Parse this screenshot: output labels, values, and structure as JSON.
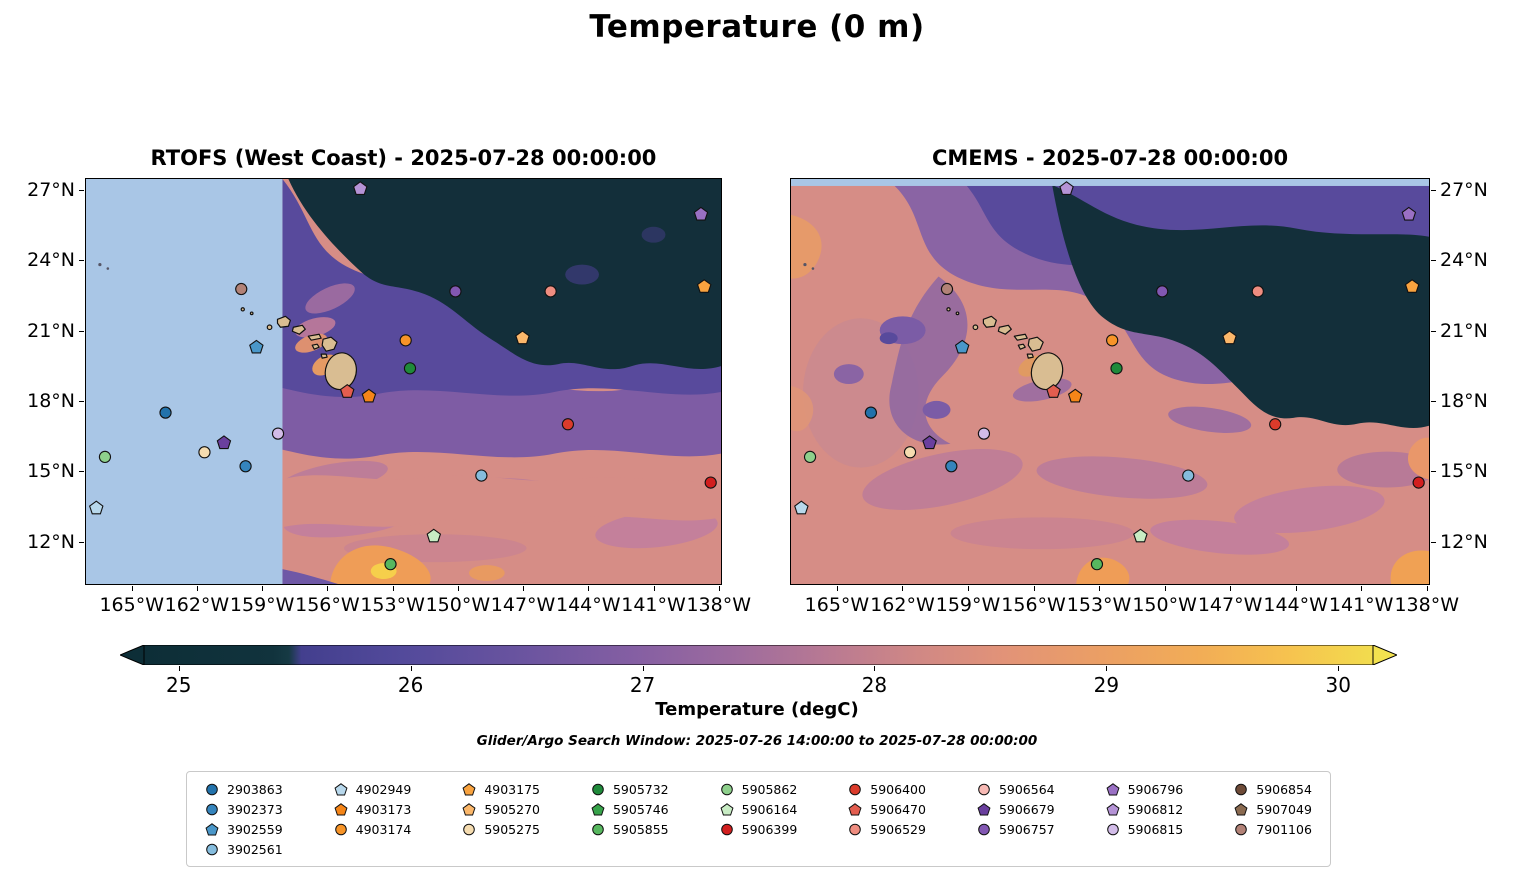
{
  "figure": {
    "title": "Temperature (0 m)",
    "search_window": "Glider/Argo Search Window: 2025-07-26 14:00:00 to 2025-07-28 00:00:00"
  },
  "panels": {
    "left": {
      "title": "RTOFS (West Coast) - 2025-07-28 00:00:00"
    },
    "right": {
      "title": "CMEMS - 2025-07-28 00:00:00"
    }
  },
  "axes": {
    "lon_ticks": [
      {
        "label": "165°W",
        "value": -165
      },
      {
        "label": "162°W",
        "value": -162
      },
      {
        "label": "159°W",
        "value": -159
      },
      {
        "label": "156°W",
        "value": -156
      },
      {
        "label": "153°W",
        "value": -153
      },
      {
        "label": "150°W",
        "value": -150
      },
      {
        "label": "147°W",
        "value": -147
      },
      {
        "label": "144°W",
        "value": -144
      },
      {
        "label": "141°W",
        "value": -141
      },
      {
        "label": "138°W",
        "value": -138
      }
    ],
    "lat_ticks": [
      {
        "label": "27°N",
        "value": 27
      },
      {
        "label": "24°N",
        "value": 24
      },
      {
        "label": "21°N",
        "value": 21
      },
      {
        "label": "18°N",
        "value": 18
      },
      {
        "label": "15°N",
        "value": 15
      },
      {
        "label": "12°N",
        "value": 12
      }
    ]
  },
  "colorbar": {
    "label": "Temperature (degC)",
    "ticks": [
      {
        "label": "25",
        "value": 25
      },
      {
        "label": "26",
        "value": 26
      },
      {
        "label": "27",
        "value": 27
      },
      {
        "label": "28",
        "value": 28
      },
      {
        "label": "29",
        "value": 29
      },
      {
        "label": "30",
        "value": 30
      }
    ],
    "range": [
      24.85,
      30.15
    ],
    "extend": "both",
    "under_color": "#0d2e37",
    "over_color": "#f3e24f",
    "stops": [
      [
        0,
        "#0d2e37"
      ],
      [
        0.105,
        "#11333d"
      ],
      [
        0.118,
        "#163a44"
      ],
      [
        0.128,
        "#433f8e"
      ],
      [
        0.21,
        "#534a9b"
      ],
      [
        0.3,
        "#68539f"
      ],
      [
        0.4,
        "#855fa3"
      ],
      [
        0.48,
        "#9d6b9e"
      ],
      [
        0.555,
        "#b87993"
      ],
      [
        0.63,
        "#d08885"
      ],
      [
        0.7,
        "#e29378"
      ],
      [
        0.78,
        "#eb9f64"
      ],
      [
        0.86,
        "#f2ad56"
      ],
      [
        0.93,
        "#f6c24f"
      ],
      [
        1,
        "#f2dc4e"
      ]
    ]
  },
  "chart_data": {
    "type": "heatmap",
    "title": "Temperature (0 m)",
    "variable": "Temperature (degC)",
    "panels": [
      {
        "name": "RTOFS (West Coast)",
        "timestamp": "2025-07-28 00:00:00",
        "note": "Region west of ~158.5°W outside model domain, masked light blue"
      },
      {
        "name": "CMEMS",
        "timestamp": "2025-07-28 00:00:00",
        "note": "Thin masked light-blue strip along top edge near 27°N"
      }
    ],
    "lon_range": [
      -167.15,
      -137.85
    ],
    "lat_range": [
      10.15,
      27.52
    ],
    "mask_color": "#a9c6e6",
    "land_color": "#d9bd92",
    "field_summary": "Cold pool ~24.5-25.5 degC fills the NE quadrant (dark teal); 26-27 degC purple band surrounds Hawaii; 27.5-28.5 degC dusty salmon covers the southern/western half; warmest 29-30+ degC orange/yellow patches along the southern edge near 153°W and the SE corner",
    "floats": [
      {
        "id": "2903863",
        "marker": "circle",
        "color": "#2272ab",
        "lon": -163.5,
        "lat": 17.5
      },
      {
        "id": "3902373",
        "marker": "circle",
        "color": "#3584bc",
        "lon": -159.8,
        "lat": 15.2
      },
      {
        "id": "3902559",
        "marker": "pentagon",
        "color": "#4a97c9",
        "lon": -159.3,
        "lat": 20.3
      },
      {
        "id": "3902561",
        "marker": "circle",
        "color": "#85bcdd",
        "lon": -148.9,
        "lat": 14.8
      },
      {
        "id": "4902949",
        "marker": "pentagon",
        "color": "#b8d8ec",
        "lon": -166.7,
        "lat": 13.4
      },
      {
        "id": "4903173",
        "marker": "pentagon",
        "color": "#f58518",
        "lon": -154.1,
        "lat": 18.2
      },
      {
        "id": "4903174",
        "marker": "circle",
        "color": "#f79428",
        "lon": -152.4,
        "lat": 20.6
      },
      {
        "id": "4903175",
        "marker": "pentagon",
        "color": "#f9a33f",
        "lon": -138.6,
        "lat": 22.9
      },
      {
        "id": "5905270",
        "marker": "pentagon",
        "color": "#fbb76a",
        "lon": -147.0,
        "lat": 20.7
      },
      {
        "id": "5905275",
        "marker": "circle",
        "color": "#f5dcb0",
        "lon": -161.7,
        "lat": 15.8
      },
      {
        "id": "5905732",
        "marker": "circle",
        "color": "#1f8a3a",
        "lon": -152.2,
        "lat": 19.4
      },
      {
        "id": "5905746",
        "marker": "pentagon",
        "color": "#37a34a",
        "lon": null,
        "lat": null
      },
      {
        "id": "5905855",
        "marker": "circle",
        "color": "#57b75f",
        "lon": -153.1,
        "lat": 11.0
      },
      {
        "id": "5905862",
        "marker": "circle",
        "color": "#8ed08c",
        "lon": -166.3,
        "lat": 15.6
      },
      {
        "id": "5906164",
        "marker": "pentagon",
        "color": "#c8ecc4",
        "lon": -151.1,
        "lat": 12.2
      },
      {
        "id": "5906399",
        "marker": "circle",
        "color": "#d21f1f",
        "lon": -138.3,
        "lat": 14.5
      },
      {
        "id": "5906400",
        "marker": "circle",
        "color": "#db3b2b",
        "lon": -144.9,
        "lat": 17.0
      },
      {
        "id": "5906470",
        "marker": "pentagon",
        "color": "#e35d4f",
        "lon": -155.1,
        "lat": 18.4
      },
      {
        "id": "5906529",
        "marker": "circle",
        "color": "#ef8d80",
        "lon": -145.7,
        "lat": 22.7
      },
      {
        "id": "5906564",
        "marker": "circle",
        "color": "#f7b9b4",
        "lon": null,
        "lat": null
      },
      {
        "id": "5906679",
        "marker": "pentagon",
        "color": "#6a3f9e",
        "lon": -160.8,
        "lat": 16.2
      },
      {
        "id": "5906757",
        "marker": "circle",
        "color": "#8257b2",
        "lon": -150.1,
        "lat": 22.7
      },
      {
        "id": "5906796",
        "marker": "pentagon",
        "color": "#9a70c4",
        "lon": -138.75,
        "lat": 26.0
      },
      {
        "id": "5906812",
        "marker": "pentagon",
        "color": "#b593d6",
        "lon": -154.5,
        "lat": 27.1
      },
      {
        "id": "5906815",
        "marker": "circle",
        "color": "#d2bce8",
        "lon": -158.3,
        "lat": 16.6
      },
      {
        "id": "5906854",
        "marker": "circle",
        "color": "#6e4b38",
        "lon": null,
        "lat": null
      },
      {
        "id": "5907049",
        "marker": "pentagon",
        "color": "#8a6a50",
        "lon": null,
        "lat": null
      },
      {
        "id": "7901106",
        "marker": "circle",
        "color": "#b28277",
        "lon": -160.0,
        "lat": 22.8
      }
    ]
  },
  "legend": {
    "columns": [
      [
        "2903863",
        "3902373",
        "3902559",
        "3902561"
      ],
      [
        "4902949",
        "4903173",
        "4903174"
      ],
      [
        "4903175",
        "5905270",
        "5905275"
      ],
      [
        "5905732",
        "5905746",
        "5905855"
      ],
      [
        "5905862",
        "5906164",
        "5906399"
      ],
      [
        "5906400",
        "5906470",
        "5906529"
      ],
      [
        "5906564",
        "5906679",
        "5906757"
      ],
      [
        "5906796",
        "5906812",
        "5906815"
      ],
      [
        "5906854",
        "5907049",
        "7901106"
      ]
    ]
  }
}
